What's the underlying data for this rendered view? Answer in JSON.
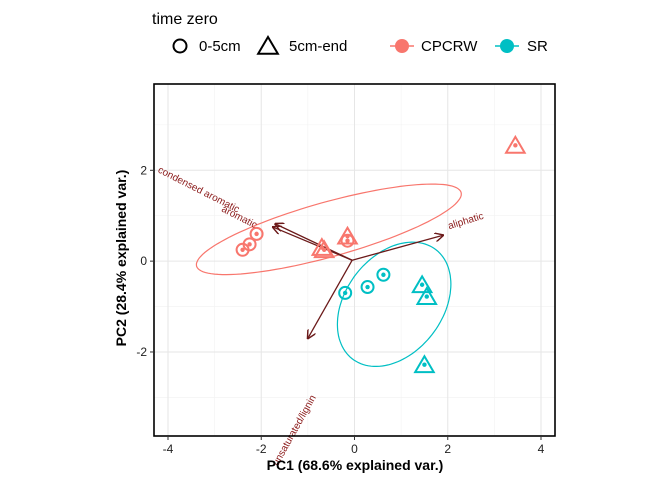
{
  "chart_data": {
    "type": "scatter",
    "xlabel": "PC1 (68.6% explained var.)",
    "ylabel": "PC2 (28.4% explained var.)",
    "xlim": [
      -4.3,
      4.3
    ],
    "ylim": [
      -3.85,
      3.9
    ],
    "xticks": [
      -4,
      -2,
      0,
      2,
      4
    ],
    "yticks": [
      -2,
      0,
      2
    ],
    "xtick_labels": [
      "-4",
      "-2",
      "0",
      "2",
      "4"
    ],
    "ytick_labels": [
      "-2",
      "0",
      "2"
    ],
    "grid": true,
    "legend": {
      "position": "top",
      "title": "time zero",
      "shapes": [
        {
          "label": "0-5cm",
          "shape": "circle"
        },
        {
          "label": "5cm-end",
          "shape": "triangle"
        }
      ],
      "groups": [
        {
          "label": "CPCRW",
          "color": "#F8766D"
        },
        {
          "label": "SR",
          "color": "#00BFC4"
        }
      ]
    },
    "points": [
      {
        "x": -2.4,
        "y": 0.25,
        "group": "CPCRW",
        "shape": "circle"
      },
      {
        "x": -2.25,
        "y": 0.37,
        "group": "CPCRW",
        "shape": "circle"
      },
      {
        "x": -2.1,
        "y": 0.6,
        "group": "CPCRW",
        "shape": "circle"
      },
      {
        "x": -0.15,
        "y": 0.45,
        "group": "CPCRW",
        "shape": "circle"
      },
      {
        "x": -0.7,
        "y": 0.3,
        "group": "CPCRW",
        "shape": "triangle"
      },
      {
        "x": -0.65,
        "y": 0.25,
        "group": "CPCRW",
        "shape": "triangle"
      },
      {
        "x": -0.15,
        "y": 0.55,
        "group": "CPCRW",
        "shape": "triangle"
      },
      {
        "x": 3.45,
        "y": 2.55,
        "group": "CPCRW",
        "shape": "triangle"
      },
      {
        "x": -0.2,
        "y": -0.7,
        "group": "SR",
        "shape": "circle"
      },
      {
        "x": 0.28,
        "y": -0.57,
        "group": "SR",
        "shape": "circle"
      },
      {
        "x": 0.62,
        "y": -0.3,
        "group": "SR",
        "shape": "circle"
      },
      {
        "x": 1.45,
        "y": -0.52,
        "group": "SR",
        "shape": "triangle"
      },
      {
        "x": 1.55,
        "y": -0.78,
        "group": "SR",
        "shape": "triangle"
      },
      {
        "x": 1.5,
        "y": -2.28,
        "group": "SR",
        "shape": "triangle"
      }
    ],
    "ellipses": [
      {
        "group": "CPCRW",
        "cx": -0.55,
        "cy": 0.7,
        "rx": 2.95,
        "ry": 0.6,
        "angle_deg": 16
      },
      {
        "group": "SR",
        "cx": 0.85,
        "cy": -0.95,
        "rx": 1.05,
        "ry": 1.5,
        "angle_deg": -35
      }
    ],
    "loadings": {
      "origin": [
        -0.05,
        0.02
      ],
      "color": "#6b1a1a",
      "vectors": [
        {
          "label": "condensed aromatic",
          "x": -1.7,
          "y": 0.82
        },
        {
          "label": "aromatic",
          "x": -1.75,
          "y": 0.75
        },
        {
          "label": "aliphatic",
          "x": 1.9,
          "y": 0.57
        },
        {
          "label": "unsaturated/lignin",
          "x": -1.0,
          "y": -1.7
        }
      ]
    }
  }
}
